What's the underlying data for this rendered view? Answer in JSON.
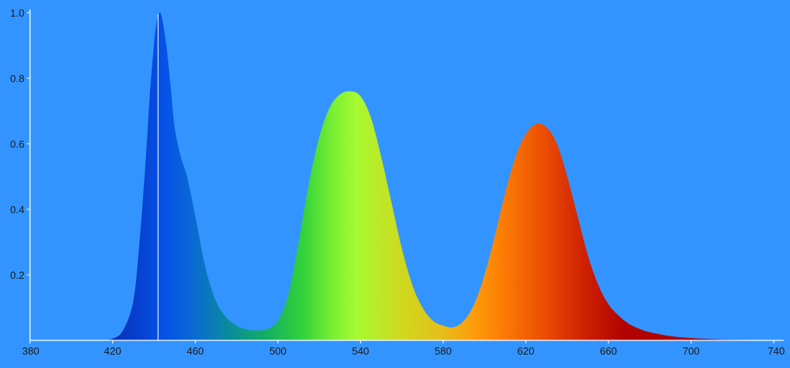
{
  "chart_data": {
    "type": "area",
    "title": "",
    "xlabel": "",
    "ylabel": "",
    "xlim": [
      380,
      745
    ],
    "ylim": [
      0,
      1.0
    ],
    "grid": false,
    "x_ticks": [
      "380",
      "420",
      "460",
      "500",
      "540",
      "580",
      "620",
      "660",
      "700",
      "740"
    ],
    "y_ticks": [
      "0.2",
      "0.4",
      "0.6",
      "0.8",
      "1.0"
    ],
    "marker_line_x": 442,
    "series": [
      {
        "x": [
          415,
          420,
          425,
          430,
          433,
          436,
          438,
          440,
          441,
          442,
          443,
          444,
          446,
          448,
          450,
          453,
          456,
          460,
          465,
          470,
          475,
          480,
          485,
          490,
          495,
          500,
          505,
          510,
          515,
          520,
          525,
          530,
          535,
          540,
          545,
          550,
          555,
          560,
          565,
          570,
          575,
          580,
          585,
          590,
          595,
          600,
          605,
          610,
          615,
          620,
          625,
          630,
          635,
          640,
          645,
          650,
          655,
          660,
          665,
          670,
          675,
          680,
          690,
          700,
          710,
          720,
          730,
          740
        ],
        "values": [
          0.0,
          0.005,
          0.03,
          0.12,
          0.3,
          0.55,
          0.75,
          0.9,
          0.96,
          0.99,
          1.0,
          0.98,
          0.9,
          0.78,
          0.65,
          0.56,
          0.5,
          0.38,
          0.22,
          0.12,
          0.07,
          0.045,
          0.033,
          0.03,
          0.035,
          0.06,
          0.14,
          0.3,
          0.48,
          0.62,
          0.71,
          0.75,
          0.76,
          0.745,
          0.68,
          0.56,
          0.42,
          0.28,
          0.17,
          0.1,
          0.06,
          0.045,
          0.04,
          0.06,
          0.11,
          0.2,
          0.32,
          0.45,
          0.56,
          0.63,
          0.66,
          0.65,
          0.6,
          0.5,
          0.38,
          0.26,
          0.17,
          0.11,
          0.075,
          0.05,
          0.035,
          0.025,
          0.013,
          0.007,
          0.004,
          0.002,
          0.001,
          0.0
        ]
      }
    ],
    "gradient_stops": [
      {
        "x": 420,
        "color": "#0a2fb8"
      },
      {
        "x": 445,
        "color": "#0552e8"
      },
      {
        "x": 460,
        "color": "#0a6cd0"
      },
      {
        "x": 478,
        "color": "#0a8f95"
      },
      {
        "x": 495,
        "color": "#14b060"
      },
      {
        "x": 512,
        "color": "#32d23a"
      },
      {
        "x": 527,
        "color": "#7af032"
      },
      {
        "x": 538,
        "color": "#a6fa33"
      },
      {
        "x": 560,
        "color": "#cfd91e"
      },
      {
        "x": 578,
        "color": "#e4c01a"
      },
      {
        "x": 595,
        "color": "#fd9c0a"
      },
      {
        "x": 610,
        "color": "#fb7a04"
      },
      {
        "x": 630,
        "color": "#ea4a02"
      },
      {
        "x": 650,
        "color": "#cc1e01"
      },
      {
        "x": 668,
        "color": "#b00301"
      },
      {
        "x": 740,
        "color": "#b00000"
      }
    ]
  }
}
